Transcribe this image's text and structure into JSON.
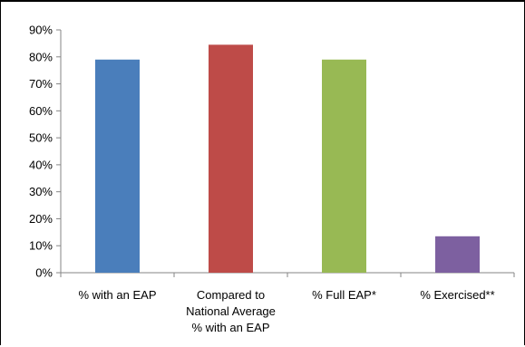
{
  "chart_data": {
    "type": "bar",
    "title": "",
    "xlabel": "",
    "ylabel": "",
    "categories": [
      [
        "% with an EAP"
      ],
      [
        "Compared to",
        "National Average",
        "% with an EAP"
      ],
      [
        "% Full EAP*"
      ],
      [
        "% Exercised**"
      ]
    ],
    "values": [
      79,
      84.5,
      79,
      13.5
    ],
    "value_unit": "percent",
    "colors": [
      "#4a7ebb",
      "#be4b48",
      "#98b954",
      "#7d60a0"
    ],
    "ylim": [
      0,
      90
    ],
    "y_ticks": [
      0,
      10,
      20,
      30,
      40,
      50,
      60,
      70,
      80,
      90
    ],
    "y_tick_labels": [
      "0%",
      "10%",
      "20%",
      "30%",
      "40%",
      "50%",
      "60%",
      "70%",
      "80%",
      "90%"
    ],
    "grid": false,
    "legend": "none"
  }
}
